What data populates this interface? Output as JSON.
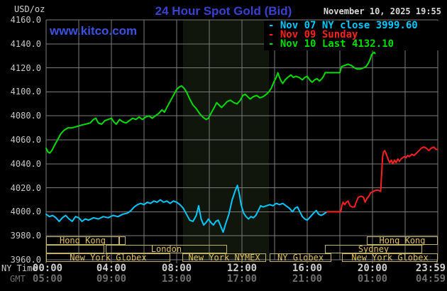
{
  "header": {
    "units": "USD/oz",
    "title": "24 Hour Spot Gold (Bid)",
    "datetime": "November 10, 2025 19:55",
    "site": "www.kitco.com"
  },
  "legend": [
    {
      "marker": "-",
      "label": "Nov 07 NY close 3999.60",
      "color": "#00c8ff"
    },
    {
      "marker": "-",
      "label": "Nov 09 Sunday",
      "color": "#ff2020"
    },
    {
      "marker": "-",
      "label": "Nov 10 Last 4132.10",
      "color": "#00dd00"
    }
  ],
  "axes": {
    "y_ticks": [
      "4160.0",
      "4140.0",
      "4120.0",
      "4100.0",
      "4080.0",
      "4060.0",
      "4040.0",
      "4020.0",
      "4000.0",
      "3980.0",
      "3960.0"
    ],
    "ny_label": "NY Time",
    "gmt_label": "GMT",
    "ny_times": [
      "00:00",
      "04:00",
      "08:00",
      "12:00",
      "16:00",
      "20:00",
      "23:59"
    ],
    "gmt_times": [
      "05:00",
      "09:00",
      "13:00",
      "17:00",
      "21:00",
      "01:00",
      "04:59"
    ],
    "time_hours": [
      0,
      4,
      8,
      12,
      16,
      20,
      24
    ]
  },
  "sessions": [
    {
      "row": 0,
      "label": "Hong Kong",
      "start": 0,
      "end": 4.48
    },
    {
      "row": 0,
      "label": "",
      "start": 4.48,
      "end": 4.87
    },
    {
      "row": 0,
      "label": "Hong Kong",
      "start": 19.65,
      "end": 24
    },
    {
      "row": 1,
      "label": "",
      "start": 0,
      "end": 3.57
    },
    {
      "row": 1,
      "label": "London",
      "start": 3.65,
      "end": 11.09
    },
    {
      "row": 1,
      "label": "Sydney",
      "start": 17.09,
      "end": 23.04
    },
    {
      "row": 2,
      "label": "New York Globex",
      "start": 0,
      "end": 7.6
    },
    {
      "row": 2,
      "label": "New York NYMEX",
      "start": 8.35,
      "end": 13.48
    },
    {
      "row": 2,
      "label": "NY Globex",
      "start": 13.7,
      "end": 17.48
    },
    {
      "row": 2,
      "label": "New York Globex",
      "start": 18.13,
      "end": 24
    }
  ],
  "chart_data": {
    "type": "line",
    "title": "24 Hour Spot Gold (Bid)",
    "xlabel": "NY Time / GMT (hours)",
    "ylabel": "USD/oz",
    "ylim": [
      3960,
      4160
    ],
    "xlim_hours": [
      0,
      24
    ],
    "grid": {
      "x_step_hours": 2,
      "y_step": 20
    },
    "band": {
      "start": 8.39,
      "end": 13.65,
      "note": "NYMEX open session shading"
    },
    "colors": {
      "grid": "#7b7b7b",
      "band": "#11160d",
      "background": "#000000"
    },
    "series": [
      {
        "name": "Nov 07 NY close 3999.60",
        "color": "#00c8ff",
        "close": 3999.6,
        "points": [
          [
            0,
            3998
          ],
          [
            0.2,
            3996
          ],
          [
            0.4,
            3997
          ],
          [
            0.6,
            3995
          ],
          [
            0.8,
            3992
          ],
          [
            1.0,
            3995
          ],
          [
            1.2,
            3997
          ],
          [
            1.4,
            3994
          ],
          [
            1.6,
            3992
          ],
          [
            1.8,
            3996
          ],
          [
            2.0,
            3995
          ],
          [
            2.2,
            3992
          ],
          [
            2.4,
            3994
          ],
          [
            2.6,
            3993
          ],
          [
            2.9,
            3995
          ],
          [
            3.2,
            3994
          ],
          [
            3.5,
            3996
          ],
          [
            3.8,
            3995
          ],
          [
            4.1,
            3997
          ],
          [
            4.4,
            3996
          ],
          [
            4.7,
            3998
          ],
          [
            5.0,
            3999
          ],
          [
            5.2,
            4001
          ],
          [
            5.4,
            4004
          ],
          [
            5.6,
            4006
          ],
          [
            5.8,
            4007
          ],
          [
            6.0,
            4006
          ],
          [
            6.2,
            4008
          ],
          [
            6.4,
            4007
          ],
          [
            6.6,
            4009
          ],
          [
            6.8,
            4008
          ],
          [
            7.0,
            4010
          ],
          [
            7.2,
            4008
          ],
          [
            7.4,
            4009
          ],
          [
            7.6,
            4007
          ],
          [
            7.8,
            4009
          ],
          [
            8.0,
            4008
          ],
          [
            8.2,
            4006
          ],
          [
            8.4,
            4003
          ],
          [
            8.6,
            3998
          ],
          [
            8.8,
            3993
          ],
          [
            9.0,
            3992
          ],
          [
            9.2,
            3997
          ],
          [
            9.35,
            4005
          ],
          [
            9.5,
            3994
          ],
          [
            9.65,
            3989
          ],
          [
            9.8,
            3991
          ],
          [
            9.95,
            3994
          ],
          [
            10.1,
            3991
          ],
          [
            10.25,
            3989
          ],
          [
            10.4,
            3992
          ],
          [
            10.55,
            3993
          ],
          [
            10.7,
            3988
          ],
          [
            10.85,
            3983
          ],
          [
            11.0,
            3990
          ],
          [
            11.2,
            3998
          ],
          [
            11.4,
            4010
          ],
          [
            11.6,
            4018
          ],
          [
            11.72,
            4022
          ],
          [
            11.85,
            4014
          ],
          [
            11.95,
            4006
          ],
          [
            12.1,
            3999
          ],
          [
            12.25,
            3996
          ],
          [
            12.4,
            3994
          ],
          [
            12.55,
            3996
          ],
          [
            12.7,
            3995
          ],
          [
            12.85,
            3997
          ],
          [
            13.0,
            4001
          ],
          [
            13.15,
            4005
          ],
          [
            13.3,
            4004
          ],
          [
            13.5,
            4005
          ],
          [
            13.7,
            4006
          ],
          [
            13.9,
            4005
          ],
          [
            14.1,
            4007
          ],
          [
            14.3,
            4006
          ],
          [
            14.5,
            4007
          ],
          [
            14.7,
            4005
          ],
          [
            14.9,
            4003
          ],
          [
            15.1,
            4000
          ],
          [
            15.25,
            4003
          ],
          [
            15.4,
            4004
          ],
          [
            15.55,
            4000
          ],
          [
            15.7,
            3996
          ],
          [
            15.85,
            3994
          ],
          [
            16.0,
            3993
          ],
          [
            16.2,
            3996
          ],
          [
            16.4,
            3999
          ],
          [
            16.55,
            4001
          ],
          [
            16.7,
            3998
          ],
          [
            16.85,
            3997
          ],
          [
            17.0,
            3998
          ],
          [
            17.2,
            4000
          ]
        ]
      },
      {
        "name": "Nov 09 Sunday",
        "color": "#ff2020",
        "points": [
          [
            17.2,
            4000
          ],
          [
            18.05,
            4000
          ],
          [
            18.12,
            4005
          ],
          [
            18.2,
            4008
          ],
          [
            18.3,
            4006
          ],
          [
            18.4,
            4008
          ],
          [
            18.5,
            4009
          ],
          [
            18.62,
            4005
          ],
          [
            18.75,
            4004
          ],
          [
            18.9,
            4004
          ],
          [
            19.0,
            4008
          ],
          [
            19.12,
            4012
          ],
          [
            19.3,
            4013
          ],
          [
            19.45,
            4012
          ],
          [
            19.55,
            4008
          ],
          [
            19.65,
            4011
          ],
          [
            19.78,
            4013
          ],
          [
            19.9,
            4016
          ],
          [
            20.05,
            4017
          ],
          [
            20.2,
            4018
          ],
          [
            20.35,
            4018
          ],
          [
            20.5,
            4017
          ],
          [
            20.56,
            4032
          ],
          [
            20.62,
            4046
          ],
          [
            20.68,
            4050
          ],
          [
            20.75,
            4051
          ],
          [
            20.85,
            4048
          ],
          [
            20.95,
            4044
          ],
          [
            21.05,
            4041
          ],
          [
            21.15,
            4043
          ],
          [
            21.25,
            4040
          ],
          [
            21.35,
            4043
          ],
          [
            21.45,
            4041
          ],
          [
            21.55,
            4044
          ],
          [
            21.65,
            4042
          ],
          [
            21.75,
            4044
          ],
          [
            21.85,
            4045
          ],
          [
            21.95,
            4046
          ],
          [
            22.05,
            4045
          ],
          [
            22.15,
            4047
          ],
          [
            22.25,
            4046
          ],
          [
            22.4,
            4048
          ],
          [
            22.55,
            4047
          ],
          [
            22.7,
            4049
          ],
          [
            22.85,
            4051
          ],
          [
            23.0,
            4053
          ],
          [
            23.15,
            4054
          ],
          [
            23.3,
            4053
          ],
          [
            23.45,
            4051
          ],
          [
            23.6,
            4053
          ],
          [
            23.75,
            4054
          ],
          [
            23.9,
            4052
          ],
          [
            23.98,
            4052
          ]
        ]
      },
      {
        "name": "Nov 10 Last 4132.10",
        "color": "#00dd00",
        "last": 4132.1,
        "points": [
          [
            0,
            4053
          ],
          [
            0.1,
            4050
          ],
          [
            0.22,
            4049
          ],
          [
            0.35,
            4051
          ],
          [
            0.5,
            4055
          ],
          [
            0.7,
            4060
          ],
          [
            0.9,
            4065
          ],
          [
            1.1,
            4068
          ],
          [
            1.35,
            4070
          ],
          [
            1.6,
            4070
          ],
          [
            1.85,
            4071
          ],
          [
            2.1,
            4072
          ],
          [
            2.4,
            4073
          ],
          [
            2.7,
            4074
          ],
          [
            2.9,
            4077
          ],
          [
            3.05,
            4078
          ],
          [
            3.2,
            4074
          ],
          [
            3.4,
            4073
          ],
          [
            3.6,
            4076
          ],
          [
            3.8,
            4077
          ],
          [
            4.0,
            4078
          ],
          [
            4.15,
            4075
          ],
          [
            4.3,
            4073
          ],
          [
            4.5,
            4077
          ],
          [
            4.7,
            4075
          ],
          [
            4.9,
            4074
          ],
          [
            5.1,
            4076
          ],
          [
            5.3,
            4078
          ],
          [
            5.5,
            4077
          ],
          [
            5.7,
            4079
          ],
          [
            5.9,
            4077
          ],
          [
            6.1,
            4079
          ],
          [
            6.3,
            4080
          ],
          [
            6.5,
            4078
          ],
          [
            6.7,
            4080
          ],
          [
            6.9,
            4082
          ],
          [
            7.1,
            4085
          ],
          [
            7.25,
            4083
          ],
          [
            7.4,
            4087
          ],
          [
            7.6,
            4092
          ],
          [
            7.8,
            4097
          ],
          [
            8.0,
            4102
          ],
          [
            8.15,
            4104
          ],
          [
            8.3,
            4105
          ],
          [
            8.45,
            4103
          ],
          [
            8.6,
            4100
          ],
          [
            8.8,
            4094
          ],
          [
            9.0,
            4089
          ],
          [
            9.2,
            4086
          ],
          [
            9.4,
            4082
          ],
          [
            9.6,
            4079
          ],
          [
            9.8,
            4077
          ],
          [
            9.95,
            4078
          ],
          [
            10.1,
            4082
          ],
          [
            10.3,
            4087
          ],
          [
            10.45,
            4091
          ],
          [
            10.6,
            4089
          ],
          [
            10.75,
            4087
          ],
          [
            10.9,
            4089
          ],
          [
            11.1,
            4092
          ],
          [
            11.3,
            4093
          ],
          [
            11.5,
            4091
          ],
          [
            11.7,
            4090
          ],
          [
            11.9,
            4093
          ],
          [
            12.05,
            4097
          ],
          [
            12.2,
            4098
          ],
          [
            12.35,
            4096
          ],
          [
            12.5,
            4094
          ],
          [
            12.7,
            4096
          ],
          [
            12.9,
            4097
          ],
          [
            13.1,
            4095
          ],
          [
            13.3,
            4096
          ],
          [
            13.5,
            4098
          ],
          [
            13.65,
            4100
          ],
          [
            13.8,
            4103
          ],
          [
            13.95,
            4108
          ],
          [
            14.1,
            4112
          ],
          [
            14.2,
            4116
          ],
          [
            14.3,
            4112
          ],
          [
            14.4,
            4109
          ],
          [
            14.5,
            4107
          ],
          [
            14.65,
            4110
          ],
          [
            14.8,
            4112
          ],
          [
            15.0,
            4114
          ],
          [
            15.15,
            4112
          ],
          [
            15.3,
            4113
          ],
          [
            15.5,
            4112
          ],
          [
            15.7,
            4110
          ],
          [
            15.85,
            4112
          ],
          [
            16.0,
            4113
          ],
          [
            16.15,
            4110
          ],
          [
            16.3,
            4108
          ],
          [
            16.45,
            4110
          ],
          [
            16.6,
            4111
          ],
          [
            16.75,
            4109
          ],
          [
            16.9,
            4111
          ],
          [
            17.0,
            4113
          ],
          [
            17.1,
            4116
          ],
          [
            18.0,
            4116
          ],
          [
            18.1,
            4121
          ],
          [
            18.3,
            4122
          ],
          [
            18.5,
            4123
          ],
          [
            18.7,
            4122
          ],
          [
            18.9,
            4120
          ],
          [
            19.05,
            4119
          ],
          [
            19.25,
            4119
          ],
          [
            19.45,
            4120
          ],
          [
            19.6,
            4121
          ],
          [
            19.75,
            4124
          ],
          [
            19.85,
            4127
          ],
          [
            19.95,
            4131
          ],
          [
            20.1,
            4133
          ],
          [
            20.15,
            4132
          ]
        ]
      }
    ]
  }
}
